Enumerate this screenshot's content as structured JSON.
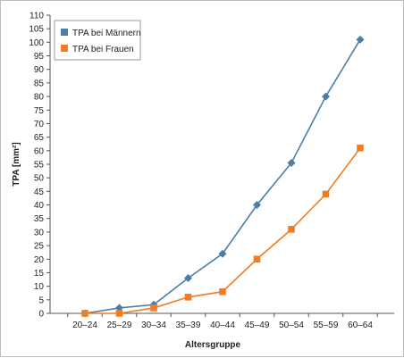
{
  "chart_data": {
    "type": "line",
    "categories": [
      "20–24",
      "25–29",
      "30–34",
      "35–39",
      "40–44",
      "45–49",
      "50–54",
      "55–59",
      "60–64"
    ],
    "series": [
      {
        "name": "TPA bei Männern",
        "color": "#4a7ea6",
        "marker": "diamond",
        "values": [
          0,
          2,
          3.2,
          13,
          22,
          40,
          55.5,
          80,
          101
        ]
      },
      {
        "name": "TPA bei Frauen",
        "color": "#f07d23",
        "marker": "square",
        "values": [
          0,
          0,
          2,
          6,
          8,
          20,
          31,
          44,
          61
        ]
      }
    ],
    "xlabel": "Altersgruppe",
    "ylabel": "TPA [mm²]",
    "ylim": [
      0,
      110
    ],
    "ytick_step": 5,
    "grid": false,
    "legend_position": "top-left"
  }
}
